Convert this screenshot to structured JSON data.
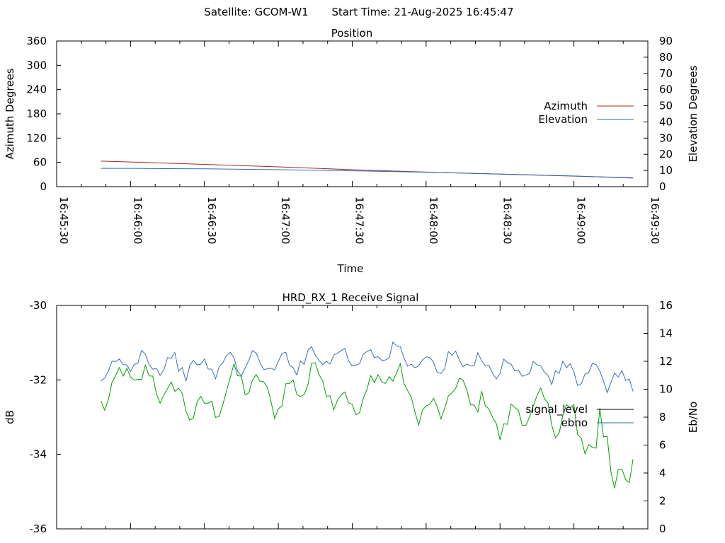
{
  "header": {
    "satellite_text": "Satellite: GCOM-W1",
    "start_time_text": "Start Time: 21-Aug-2025 16:45:47"
  },
  "colors": {
    "azimuth": "#a0281e",
    "elevation": "#2f6db0",
    "signal_level": "#000000",
    "ebno": "#2f6db0",
    "signal_trace": "#00a000",
    "ebno_trace": "#3a6fb5"
  },
  "chart_data": [
    {
      "type": "line",
      "title": "Position",
      "xlabel": "Time",
      "ylabel": "Azimuth Degrees",
      "y2label": "Elevation Degrees",
      "ylim": [
        0,
        360
      ],
      "y2lim": [
        0,
        90
      ],
      "yticks": [
        "0",
        "60",
        "120",
        "180",
        "240",
        "300",
        "360"
      ],
      "y2ticks": [
        "0",
        "10",
        "20",
        "30",
        "40",
        "50",
        "60",
        "70",
        "80",
        "90"
      ],
      "xticks": [
        "16:45:30",
        "16:46:00",
        "16:46:30",
        "16:47:00",
        "16:47:30",
        "16:48:00",
        "16:48:30",
        "16:49:00",
        "16:49:30"
      ],
      "xlim": [
        "16:45:30",
        "16:49:30"
      ],
      "legend_position": "right",
      "series": [
        {
          "name": "Azimuth",
          "axis": "left",
          "x": [
            "16:45:48",
            "16:46:00",
            "16:46:30",
            "16:47:00",
            "16:47:30",
            "16:48:00",
            "16:48:30",
            "16:49:00",
            "16:49:24"
          ],
          "values": [
            63,
            61,
            55,
            49,
            42,
            36,
            31,
            26,
            22
          ]
        },
        {
          "name": "Elevation",
          "axis": "right",
          "x": [
            "16:45:48",
            "16:46:00",
            "16:46:30",
            "16:47:00",
            "16:47:30",
            "16:48:00",
            "16:48:30",
            "16:49:00",
            "16:49:24"
          ],
          "values": [
            11.3,
            11.3,
            11.0,
            10.5,
            9.8,
            8.9,
            7.8,
            6.6,
            5.3
          ]
        }
      ]
    },
    {
      "type": "line",
      "title": "HRD_RX_1 Receive Signal",
      "xlabel": "",
      "ylabel": "dB",
      "y2label": "Eb/No",
      "ylim": [
        -36,
        -30
      ],
      "y2lim": [
        0,
        16
      ],
      "yticks": [
        "-36",
        "-34",
        "-32",
        "-30"
      ],
      "y2ticks": [
        "0",
        "2",
        "4",
        "6",
        "8",
        "10",
        "12",
        "14",
        "16"
      ],
      "xlim": [
        "16:45:30",
        "16:49:30"
      ],
      "legend_position": "right",
      "legend": [
        "signal_level",
        "ebno"
      ],
      "series": [
        {
          "name": "signal_level",
          "axis": "left",
          "x": [
            "16:45:48",
            "16:46:00",
            "16:46:15",
            "16:46:30",
            "16:46:45",
            "16:47:00",
            "16:47:15",
            "16:47:30",
            "16:47:45",
            "16:48:00",
            "16:48:15",
            "16:48:30",
            "16:48:45",
            "16:49:00",
            "16:49:10",
            "16:49:20",
            "16:49:24"
          ],
          "values": [
            -32.5,
            -31.8,
            -32.3,
            -32.9,
            -31.9,
            -32.6,
            -31.8,
            -32.8,
            -31.7,
            -33.0,
            -32.2,
            -33.2,
            -32.7,
            -33.3,
            -33.6,
            -34.5,
            -34.3
          ]
        },
        {
          "name": "ebno",
          "axis": "right",
          "x": [
            "16:45:48",
            "16:46:00",
            "16:46:15",
            "16:46:30",
            "16:46:45",
            "16:47:00",
            "16:47:15",
            "16:47:30",
            "16:47:45",
            "16:48:00",
            "16:48:15",
            "16:48:30",
            "16:48:45",
            "16:49:00",
            "16:49:10",
            "16:49:20",
            "16:49:24"
          ],
          "values": [
            10.8,
            12.2,
            11.8,
            11.5,
            12.0,
            11.7,
            12.4,
            12.3,
            12.6,
            11.8,
            12.0,
            11.6,
            11.3,
            11.2,
            10.8,
            10.7,
            10.5
          ]
        }
      ]
    }
  ]
}
